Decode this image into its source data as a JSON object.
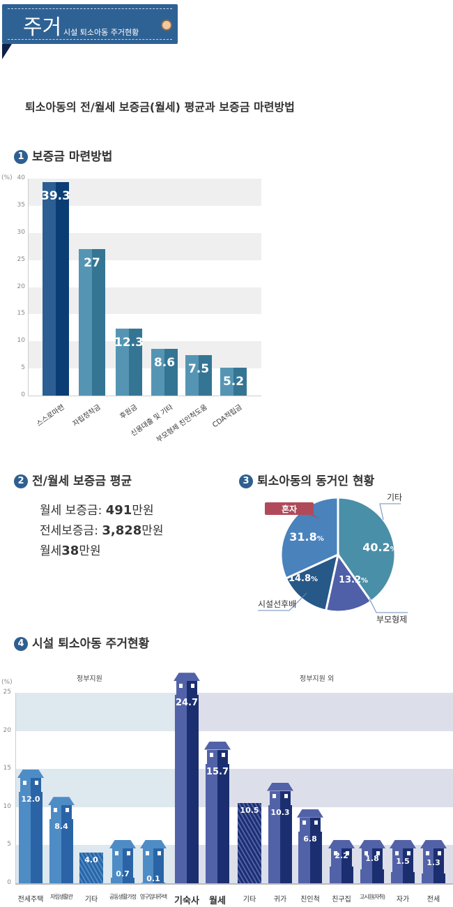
{
  "banner": {
    "title": "주거",
    "subtitle": "시설 퇴소아동 주거현황"
  },
  "page_subtitle": "퇴소아동의 전/월세 보증금(월세) 평균과 보증금 마련방법",
  "sections": [
    {
      "num": "1",
      "title": "보증금 마련방법"
    },
    {
      "num": "2",
      "title": "전/월세 보증금 평균"
    },
    {
      "num": "3",
      "title": "퇴소아동의 동거인 현황"
    },
    {
      "num": "4",
      "title": "시설 퇴소아동 주거현황"
    }
  ],
  "deposit_average": {
    "lines": [
      {
        "label": "월세 보증금: ",
        "value": "491",
        "unit": "만원"
      },
      {
        "label": "전세보증금: ",
        "value": "3,828",
        "unit": "만원"
      },
      {
        "label": "월세",
        "value": "38",
        "unit": "만원"
      }
    ]
  },
  "chart_data": [
    {
      "type": "bar",
      "title": "보증금 마련방법",
      "ylabel": "(%)",
      "ylim": [
        0,
        40
      ],
      "yticks": [
        "0",
        "5",
        "10",
        "15",
        "20",
        "25",
        "30",
        "35",
        "40"
      ],
      "grid": "banded",
      "categories": [
        "스스로마련",
        "자립정착금",
        "후원금",
        "신용대출 및 기타",
        "부모형제 친인척도움",
        "CDA적립금"
      ],
      "values": [
        39.3,
        27,
        12.3,
        8.6,
        7.5,
        5.2
      ],
      "value_labels": [
        "39.3",
        "27",
        "12.3",
        "8.6",
        "7.5",
        "5.2"
      ],
      "colors": {
        "first": [
          "#2c5e93",
          "#0b3d75"
        ],
        "others": [
          "#5595b3",
          "#357594"
        ]
      }
    },
    {
      "type": "pie",
      "title": "퇴소아동의 동거인 현황",
      "slices": [
        {
          "name": "기타",
          "value": 40.2,
          "label": "40.2",
          "color": "#4a8fa8"
        },
        {
          "name": "부모형제",
          "value": 13.2,
          "label": "13.2",
          "color": "#4f5fa8"
        },
        {
          "name": "시설선후배",
          "value": 14.8,
          "label": "14.8",
          "color": "#265888"
        },
        {
          "name": "혼자",
          "value": 31.8,
          "label": "31.8",
          "color": "#4a82bc"
        }
      ],
      "unit": "%",
      "highlight": {
        "name": "혼자",
        "color": "#b04a5a"
      }
    },
    {
      "type": "bar",
      "title": "시설 퇴소아동 주거현황",
      "ylabel": "(%)",
      "ylim": [
        0,
        25
      ],
      "yticks": [
        "0",
        "5",
        "10",
        "15",
        "20",
        "25"
      ],
      "groups": [
        {
          "name": "정부지원",
          "count": 5,
          "color": [
            "#4e8cc6",
            "#2a64a6"
          ],
          "band": "#dde8ef"
        },
        {
          "name": "정부지원 외",
          "count": 9,
          "color": [
            "#5262a8",
            "#1b2f70"
          ],
          "band": "#dcdfea"
        }
      ],
      "categories": [
        "전세주택",
        "자립생활관",
        "기타",
        "공동생활가정",
        "영구임대주택",
        "기숙사",
        "월세",
        "기타",
        "귀가",
        "친인척",
        "친구집",
        "고시원(자취)",
        "자가",
        "전세"
      ],
      "values": [
        12.0,
        8.4,
        4.0,
        0.7,
        0.1,
        24.7,
        15.7,
        10.5,
        10.3,
        6.8,
        2.2,
        1.8,
        1.5,
        1.3
      ],
      "value_labels": [
        "12.0",
        "8.4",
        "4.0",
        "0.7",
        "0.1",
        "24.7",
        "15.7",
        "10.5",
        "10.3",
        "6.8",
        "2.2",
        "1.8",
        "1.5",
        "1.3"
      ],
      "hatched": [
        "기타"
      ]
    }
  ]
}
